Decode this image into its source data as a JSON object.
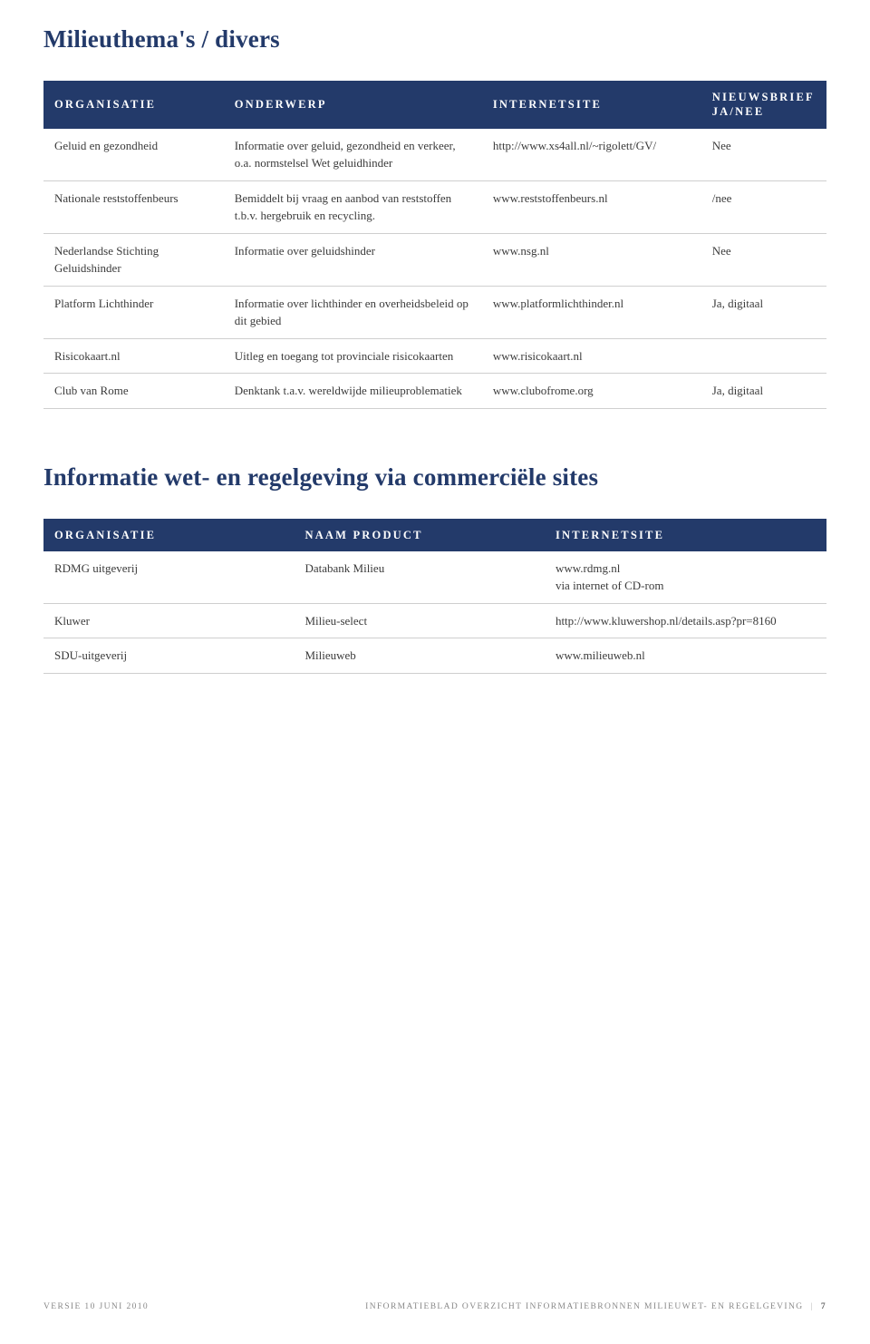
{
  "colors": {
    "header_bg": "#233a6a",
    "header_text": "#ffffff",
    "title_text": "#233a6a",
    "body_text": "#3b3b3b",
    "row_border": "#cfcfcf",
    "footer_text": "#888888"
  },
  "section1": {
    "title": "Milieuthema's / divers",
    "columns": [
      "ORGANISATIE",
      "ONDERWERP",
      "INTERNETSITE",
      "NIEUWSBRIEF\nJA/NEE"
    ],
    "rows": [
      {
        "org": "Geluid en gezondheid",
        "onderwerp": "Informatie over geluid, gezondheid en verkeer, o.a. normstelsel Wet geluidhinder",
        "site": "http://www.xs4all.nl/~rigolett/GV/",
        "nieuwsbrief": "Nee"
      },
      {
        "org": "Nationale reststoffenbeurs",
        "onderwerp": "Bemiddelt bij vraag en aanbod van reststoffen t.b.v. hergebruik en recycling.",
        "site": "www.reststoffenbeurs.nl",
        "nieuwsbrief": "/nee"
      },
      {
        "org": "Nederlandse Stichting Geluidshinder",
        "onderwerp": "Informatie over geluidshinder",
        "site": "www.nsg.nl",
        "nieuwsbrief": "Nee"
      },
      {
        "org": "Platform Lichthinder",
        "onderwerp": "Informatie over lichthinder en overheidsbeleid op dit gebied",
        "site": "www.platformlichthinder.nl",
        "nieuwsbrief": "Ja, digitaal"
      },
      {
        "org": "Risicokaart.nl",
        "onderwerp": "Uitleg en toegang tot provinciale risicokaarten",
        "site": "www.risicokaart.nl",
        "nieuwsbrief": ""
      },
      {
        "org": "Club van Rome",
        "onderwerp": "Denktank t.a.v. wereldwijde milieuproblematiek",
        "site": "www.clubofrome.org",
        "nieuwsbrief": "Ja, digitaal"
      }
    ]
  },
  "section2": {
    "title": "Informatie wet- en regelgeving via commerciële sites",
    "columns": [
      "ORGANISATIE",
      "NAAM PRODUCT",
      "INTERNETSITE"
    ],
    "rows": [
      {
        "org": "RDMG uitgeverij",
        "product": "Databank Milieu",
        "site": "www.rdmg.nl\nvia internet of CD-rom"
      },
      {
        "org": "Kluwer",
        "product": "Milieu-select",
        "site": "http://www.kluwershop.nl/details.asp?pr=8160"
      },
      {
        "org": "SDU-uitgeverij",
        "product": "Milieuweb",
        "site": "www.milieuweb.nl"
      }
    ]
  },
  "footer": {
    "left": "VERSIE 10 JUNI 2010",
    "right": "INFORMATIEBLAD OVERZICHT INFORMATIEBRONNEN MILIEUWET- EN REGELGEVING",
    "page": "7"
  }
}
